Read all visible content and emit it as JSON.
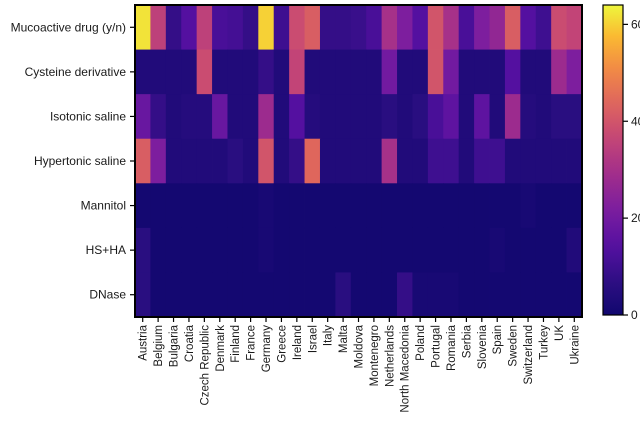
{
  "chart_data": {
    "type": "heatmap",
    "rows": [
      "Mucoactive drug  (y/n)",
      "Cysteine derivative",
      "Isotonic saline",
      "Hypertonic saline",
      "Mannitol",
      "HS+HA",
      "DNase"
    ],
    "columns": [
      "Austria",
      "Belgium",
      "Bulgaria",
      "Croatia",
      "Czech Republic",
      "Denmark",
      "Finland",
      "France",
      "Germany",
      "Greece",
      "Ireland",
      "Israel",
      "Italy",
      "Malta",
      "Moldova",
      "Montenegro",
      "Netherlands",
      "North Macedonia",
      "Poland",
      "Portugal",
      "Romania",
      "Serbia",
      "Slovenia",
      "Spain",
      "Sweden",
      "Switzerland",
      "Turkey",
      "UK",
      "Ukraine"
    ],
    "values": [
      [
        62,
        35,
        8,
        14,
        35,
        12,
        11,
        8,
        60,
        10,
        38,
        42,
        8,
        8,
        9,
        12,
        30,
        22,
        14,
        40,
        30,
        12,
        22,
        26,
        42,
        14,
        10,
        38,
        36
      ],
      [
        4,
        4,
        4,
        4,
        38,
        4,
        4,
        4,
        8,
        4,
        36,
        4,
        4,
        4,
        4,
        4,
        20,
        4,
        4,
        40,
        20,
        4,
        4,
        4,
        14,
        4,
        4,
        28,
        22
      ],
      [
        18,
        8,
        4,
        5,
        5,
        18,
        4,
        4,
        28,
        4,
        14,
        5,
        4,
        4,
        4,
        4,
        6,
        4,
        6,
        12,
        16,
        4,
        16,
        4,
        28,
        5,
        4,
        6,
        6
      ],
      [
        42,
        22,
        4,
        4,
        4,
        4,
        6,
        4,
        40,
        4,
        8,
        44,
        4,
        4,
        4,
        4,
        30,
        4,
        4,
        10,
        10,
        4,
        10,
        10,
        4,
        4,
        4,
        4,
        4
      ],
      [
        1,
        1,
        1,
        1,
        1,
        1,
        1,
        1,
        2,
        1,
        1,
        1,
        1,
        1,
        1,
        1,
        1,
        1,
        1,
        1,
        1,
        1,
        1,
        1,
        1,
        2,
        1,
        1,
        1
      ],
      [
        6,
        1,
        1,
        1,
        1,
        1,
        1,
        1,
        2,
        1,
        1,
        1,
        1,
        1,
        1,
        1,
        1,
        1,
        1,
        1,
        1,
        1,
        1,
        2,
        1,
        1,
        1,
        1,
        4
      ],
      [
        6,
        1,
        1,
        1,
        1,
        1,
        1,
        1,
        1,
        1,
        1,
        1,
        1,
        6,
        1,
        1,
        1,
        8,
        2,
        2,
        2,
        1,
        1,
        1,
        1,
        1,
        1,
        1,
        1
      ]
    ],
    "colorbar": {
      "min": 0,
      "max": 64,
      "ticks": [
        0,
        20,
        40,
        60
      ],
      "colormap": "plasma"
    },
    "title": "",
    "xlabel": "",
    "ylabel": "",
    "grid": false
  }
}
